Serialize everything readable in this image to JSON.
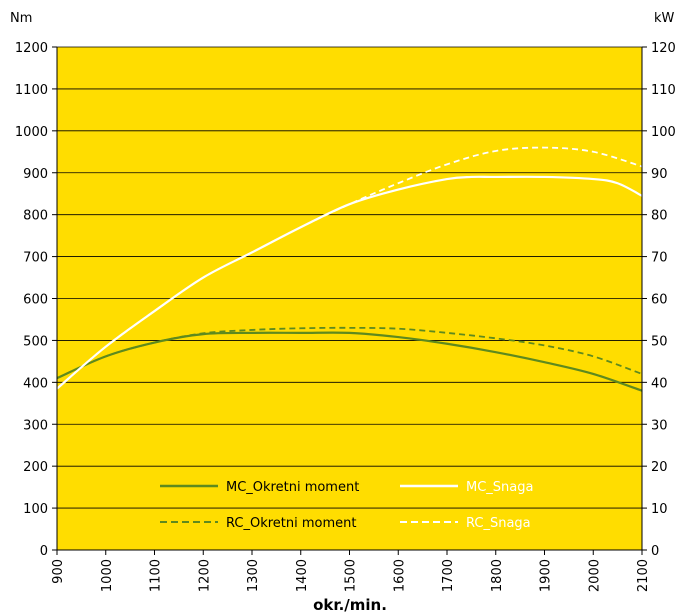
{
  "chart_data": {
    "type": "line",
    "title": "",
    "xlabel": "okr./min.",
    "ylabel_left": "Nm",
    "ylabel_right": "kW",
    "xlim": [
      900,
      2100
    ],
    "ylim_left": [
      0,
      1200
    ],
    "ylim_right": [
      0,
      120
    ],
    "x_ticks": [
      "900",
      "1000",
      "1100",
      "1200",
      "1300",
      "1400",
      "1500",
      "1600",
      "1700",
      "1800",
      "1900",
      "2000",
      "2100"
    ],
    "y_ticks_left": [
      "0",
      "100",
      "200",
      "300",
      "400",
      "500",
      "600",
      "700",
      "800",
      "900",
      "1000",
      "1100",
      "1200"
    ],
    "y_ticks_right": [
      "0",
      "10",
      "20",
      "30",
      "40",
      "50",
      "60",
      "70",
      "80",
      "90",
      "100",
      "110",
      "120"
    ],
    "grid": "horizontal",
    "background_color": "#FFDD00",
    "series": [
      {
        "name": "MC_Okretni moment",
        "axis": "left",
        "color": "#5E8A1E",
        "style": "solid",
        "x": [
          900,
          1000,
          1100,
          1200,
          1300,
          1400,
          1500,
          1600,
          1700,
          1800,
          1900,
          2000,
          2100
        ],
        "y": [
          410,
          462,
          495,
          515,
          518,
          518,
          518,
          508,
          492,
          472,
          448,
          420,
          380
        ]
      },
      {
        "name": "RC_Okretni moment",
        "axis": "left",
        "color": "#5E8A1E",
        "style": "dashed",
        "x": [
          900,
          1000,
          1100,
          1200,
          1300,
          1400,
          1500,
          1600,
          1700,
          1800,
          1900,
          2000,
          2100
        ],
        "y": [
          410,
          462,
          495,
          517,
          525,
          529,
          530,
          528,
          518,
          505,
          488,
          462,
          420
        ]
      },
      {
        "name": "MC_Snaga",
        "axis": "right",
        "color": "#FFFFFF",
        "style": "solid",
        "x": [
          900,
          1000,
          1100,
          1200,
          1300,
          1400,
          1500,
          1600,
          1700,
          1750,
          1800,
          1900,
          2000,
          2050,
          2100
        ],
        "y": [
          38.5,
          48.5,
          57,
          65,
          71,
          77,
          82.5,
          86,
          88.5,
          89,
          89,
          89,
          88.5,
          87.5,
          84.5
        ]
      },
      {
        "name": "RC_Snaga",
        "axis": "right",
        "color": "#FFFFFF",
        "style": "dashed",
        "x": [
          900,
          1000,
          1100,
          1200,
          1300,
          1400,
          1500,
          1600,
          1700,
          1800,
          1900,
          2000,
          2100
        ],
        "y": [
          38.5,
          48.5,
          57,
          65,
          71,
          77,
          82.5,
          87.5,
          92,
          95.2,
          96,
          95,
          91.5
        ]
      }
    ],
    "legend": {
      "placement": "bottom-center",
      "items": [
        {
          "label": "MC_Okretni moment",
          "color": "#5E8A1E",
          "style": "solid"
        },
        {
          "label": "MC_Snaga",
          "color": "#FFFFFF",
          "style": "solid"
        },
        {
          "label": "RC_Okretni moment",
          "color": "#5E8A1E",
          "style": "dashed"
        },
        {
          "label": "RC_Snaga",
          "color": "#FFFFFF",
          "style": "dashed"
        }
      ]
    }
  }
}
